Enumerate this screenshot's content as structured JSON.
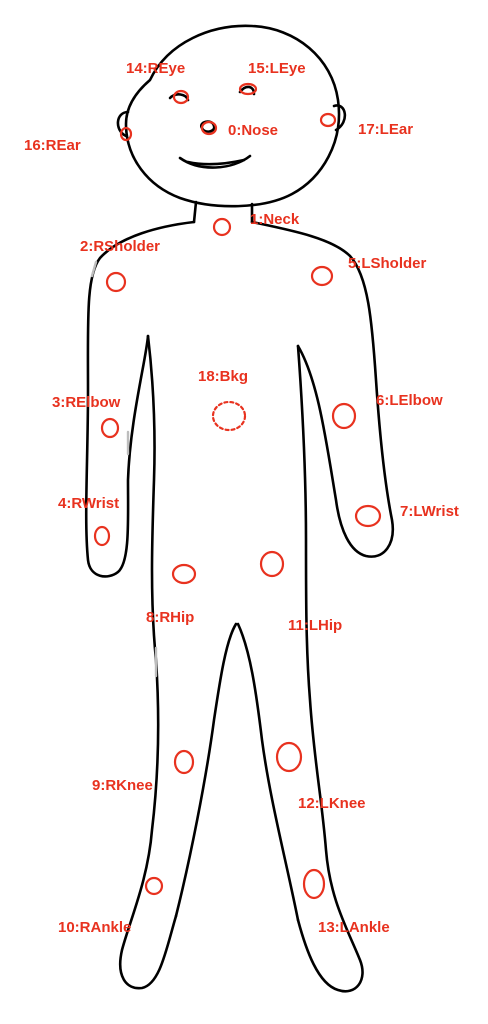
{
  "diagram": {
    "accent_color": "#e8321f",
    "outline_color": "#000000",
    "keypoints": [
      {
        "id": 0,
        "label": "0:Nose"
      },
      {
        "id": 1,
        "label": "1:Neck"
      },
      {
        "id": 2,
        "label": "2:RSholder"
      },
      {
        "id": 3,
        "label": "3:RElbow"
      },
      {
        "id": 4,
        "label": "4:RWrist"
      },
      {
        "id": 5,
        "label": "5:LSholder"
      },
      {
        "id": 6,
        "label": "6:LElbow"
      },
      {
        "id": 7,
        "label": "7:LWrist"
      },
      {
        "id": 8,
        "label": "8:RHip"
      },
      {
        "id": 9,
        "label": "9:RKnee"
      },
      {
        "id": 10,
        "label": "10:RAnkle"
      },
      {
        "id": 11,
        "label": "11:LHip"
      },
      {
        "id": 12,
        "label": "12:LKnee"
      },
      {
        "id": 13,
        "label": "13:LAnkle"
      },
      {
        "id": 14,
        "label": "14:REye"
      },
      {
        "id": 15,
        "label": "15:LEye"
      },
      {
        "id": 16,
        "label": "16:REar"
      },
      {
        "id": 17,
        "label": "17:LEar"
      },
      {
        "id": 18,
        "label": "18:Bkg"
      }
    ]
  }
}
